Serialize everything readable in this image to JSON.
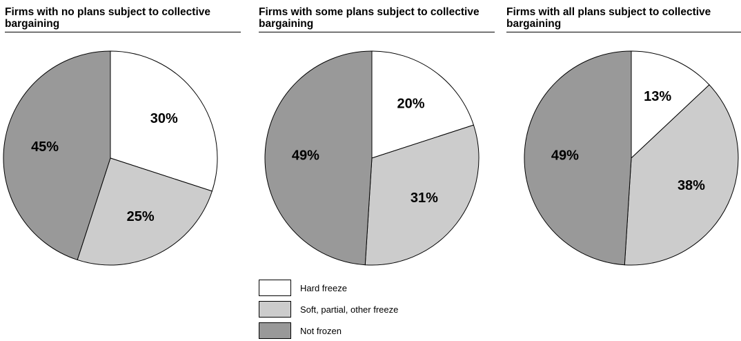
{
  "chart_data": [
    {
      "type": "pie",
      "title": "Firms with no plans subject to collective bargaining",
      "categories": [
        "Hard freeze",
        "Soft, partial, other freeze",
        "Not frozen"
      ],
      "values": [
        30,
        25,
        45
      ],
      "labels": [
        "30%",
        "25%",
        "45%"
      ]
    },
    {
      "type": "pie",
      "title": "Firms with some plans subject to collective bargaining",
      "categories": [
        "Hard freeze",
        "Soft, partial, other freeze",
        "Not frozen"
      ],
      "values": [
        20,
        31,
        49
      ],
      "labels": [
        "20%",
        "31%",
        "49%"
      ]
    },
    {
      "type": "pie",
      "title": "Firms with all plans subject to collective bargaining",
      "categories": [
        "Hard freeze",
        "Soft, partial, other freeze",
        "Not frozen"
      ],
      "values": [
        13,
        38,
        49
      ],
      "labels": [
        "13%",
        "38%",
        "49%"
      ]
    }
  ],
  "legend": {
    "items": [
      {
        "label": "Hard freeze",
        "color": "#ffffff"
      },
      {
        "label": "Soft, partial, other freeze",
        "color": "#cccccc"
      },
      {
        "label": "Not frozen",
        "color": "#999999"
      }
    ]
  },
  "colors": {
    "slices": [
      "#ffffff",
      "#cccccc",
      "#999999"
    ],
    "stroke": "#000000"
  }
}
